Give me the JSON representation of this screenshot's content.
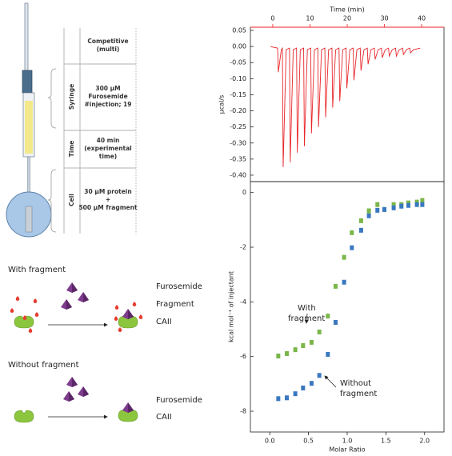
{
  "table": {
    "header": [
      "Competitive",
      "(multi)"
    ],
    "rows": [
      {
        "label": "Syringe",
        "lines": [
          "300 µM",
          "Furosemide",
          "#injection; 19"
        ]
      },
      {
        "label": "Time",
        "lines": [
          "40 min",
          "(experimental",
          "time)"
        ]
      },
      {
        "label": "Cell",
        "lines": [
          "30 µM protein",
          "+",
          "500 µM fragment"
        ]
      }
    ]
  },
  "schemes": [
    {
      "title": "With fragment",
      "legend": [
        {
          "name": "Furosemide",
          "color": "#7d3c8c"
        },
        {
          "name": "Fragment",
          "color": "#e63c2f"
        },
        {
          "name": "CAII",
          "color": "#8cc63e"
        }
      ]
    },
    {
      "title": "Without fragment",
      "legend": [
        {
          "name": "Furosemide",
          "color": "#7d3c8c"
        },
        {
          "name": "CAII",
          "color": "#8cc63e"
        }
      ]
    }
  ],
  "chart_data": [
    {
      "type": "line",
      "xlabel": "Time (min)",
      "ylabel": "µcal/s",
      "x_axis_side": "top",
      "x_axis_color": "#e8262a",
      "color": "#e8262a",
      "xlim": [
        -6,
        46
      ],
      "xticks": [
        0,
        10,
        20,
        30,
        40
      ],
      "ylim": [
        -0.42,
        0.06
      ],
      "yticks": [
        0.05,
        {
          "value": 0,
          "label": "0.00"
        },
        -0.05,
        {
          "value": -0.1,
          "label": "-0.10"
        },
        -0.15,
        {
          "value": -0.2,
          "label": "-0.20"
        },
        -0.25,
        {
          "value": -0.3,
          "label": "-0.30"
        },
        -0.35,
        {
          "value": -0.4,
          "label": "-0.40"
        }
      ],
      "x": [
        -0.6,
        1.3,
        1.5,
        2.3,
        2.6,
        2.8,
        3.6,
        4.5,
        4.7,
        5.5,
        6.4,
        6.6,
        7.4,
        8.3,
        8.5,
        9.3,
        10.2,
        10.4,
        11.2,
        12.1,
        12.3,
        13.1,
        14.0,
        14.2,
        15.0,
        15.9,
        16.1,
        16.9,
        17.8,
        18.0,
        18.8,
        19.7,
        19.9,
        20.7,
        21.6,
        21.8,
        22.6,
        23.5,
        23.7,
        24.5,
        25.4,
        25.6,
        26.4,
        27.3,
        27.5,
        28.3,
        29.2,
        29.4,
        30.2,
        31.1,
        31.3,
        32.1,
        33.0,
        33.2,
        34.0,
        34.9,
        35.1,
        35.9,
        36.8,
        37.0,
        37.8,
        39.6
      ],
      "values": [
        0,
        -0.005,
        -0.08,
        -0.01,
        -0.005,
        -0.375,
        -0.01,
        -0.005,
        -0.36,
        -0.01,
        -0.005,
        -0.33,
        -0.01,
        -0.005,
        -0.31,
        -0.01,
        -0.005,
        -0.27,
        -0.01,
        -0.005,
        -0.25,
        -0.01,
        -0.005,
        -0.22,
        -0.01,
        -0.005,
        -0.19,
        -0.01,
        -0.005,
        -0.17,
        -0.01,
        -0.005,
        -0.13,
        -0.01,
        -0.005,
        -0.105,
        -0.01,
        -0.005,
        -0.075,
        -0.01,
        -0.005,
        -0.055,
        -0.01,
        -0.005,
        -0.04,
        -0.01,
        -0.005,
        -0.035,
        -0.01,
        -0.005,
        -0.03,
        -0.01,
        -0.005,
        -0.03,
        -0.01,
        -0.005,
        -0.025,
        -0.01,
        -0.005,
        -0.02,
        -0.01,
        -0.005
      ]
    },
    {
      "type": "scatter",
      "xlabel": "Molar Ratio",
      "ylabel": "kcal mol⁻¹ of injectant",
      "xlim": [
        -0.25,
        2.25
      ],
      "xticks": [
        {
          "value": 0,
          "label": "0.0"
        },
        0.5,
        {
          "value": 1,
          "label": "1.0"
        },
        1.5,
        {
          "value": 2,
          "label": "2.0"
        }
      ],
      "ylim": [
        -8.76,
        0.4
      ],
      "yticks": [
        0,
        -2,
        -4,
        -6,
        -8
      ],
      "x": [
        0.11,
        0.22,
        0.33,
        0.43,
        0.54,
        0.64,
        0.75,
        0.85,
        0.96,
        1.06,
        1.18,
        1.28,
        1.39,
        1.48,
        1.6,
        1.7,
        1.79,
        1.9,
        1.97
      ],
      "series": [
        {
          "color": "#7ab648",
          "values": [
            -5.98,
            -5.89,
            -5.75,
            -5.6,
            -5.48,
            -5.1,
            -4.52,
            -3.43,
            -2.37,
            -1.47,
            -1.03,
            -0.67,
            -0.44,
            -0.62,
            -0.44,
            -0.44,
            -0.38,
            -0.35,
            -0.29
          ]
        },
        {
          "color": "#3a78c0",
          "values": [
            -7.54,
            -7.51,
            -7.36,
            -7.15,
            -6.98,
            -6.69,
            -5.92,
            -4.75,
            -3.28,
            -2.02,
            -1.38,
            -0.85,
            -0.65,
            -0.62,
            -0.56,
            -0.5,
            -0.47,
            -0.44,
            -0.44
          ]
        }
      ],
      "annotations": [
        {
          "lines": [
            "With",
            "fragment"
          ]
        },
        {
          "lines": [
            "Without",
            "fragment"
          ]
        }
      ]
    }
  ]
}
